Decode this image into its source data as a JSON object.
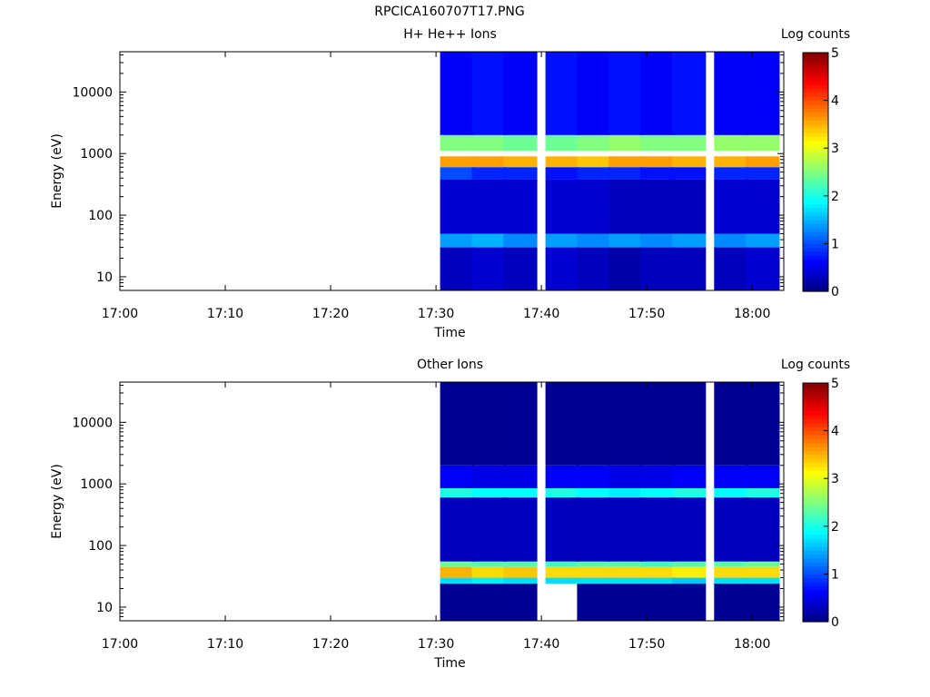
{
  "figure_title": "RPCICA160707T17.PNG",
  "colors": {
    "background": "#ffffff",
    "axis": "#000000"
  },
  "chart_data": [
    {
      "type": "heatmap",
      "title": "H+ He++ Ions",
      "xlabel": "Time",
      "ylabel": "Energy (eV)",
      "colorbar_label": "Log counts",
      "colorbar_ticks": [
        "0",
        "1",
        "2",
        "3",
        "4",
        "5"
      ],
      "colorbar_range": [
        0,
        5
      ],
      "colormap": "jet",
      "x_ticks": [
        "17:00",
        "17:10",
        "17:20",
        "17:30",
        "17:40",
        "17:50",
        "18:00"
      ],
      "x_range": [
        "17:00",
        "18:03"
      ],
      "y_scale": "log",
      "y_ticks": [
        "10",
        "100",
        "1000",
        "10000"
      ],
      "y_range": [
        6,
        45000
      ],
      "time_bins": [
        "17:32",
        "17:35",
        "17:38",
        "17:42",
        "17:45",
        "17:48",
        "17:51",
        "17:54",
        "17:58",
        "18:01"
      ],
      "energy_bands_eV": [
        {
          "range": [
            600,
            900
          ],
          "log_counts": [
            3.6,
            3.6,
            3.5,
            3.5,
            3.4,
            3.6,
            3.6,
            3.5,
            3.5,
            3.6
          ]
        },
        {
          "range": [
            1100,
            2000
          ],
          "log_counts": [
            2.5,
            2.5,
            2.4,
            2.4,
            2.5,
            2.6,
            2.5,
            2.5,
            2.6,
            2.6
          ]
        },
        {
          "range": [
            2000,
            45000
          ],
          "log_counts": [
            0.6,
            0.7,
            0.6,
            0.7,
            0.6,
            0.7,
            0.6,
            0.7,
            0.6,
            0.6
          ]
        },
        {
          "range": [
            380,
            600
          ],
          "log_counts": [
            1.0,
            0.8,
            0.8,
            0.7,
            0.8,
            0.8,
            0.7,
            0.7,
            0.8,
            0.8
          ]
        },
        {
          "range": [
            50,
            380
          ],
          "log_counts": [
            0.4,
            0.4,
            0.4,
            0.4,
            0.4,
            0.3,
            0.3,
            0.3,
            0.4,
            0.4
          ]
        },
        {
          "range": [
            30,
            50
          ],
          "log_counts": [
            1.4,
            1.5,
            1.3,
            1.4,
            1.3,
            1.4,
            1.3,
            1.4,
            1.3,
            1.4
          ]
        },
        {
          "range": [
            6,
            30
          ],
          "log_counts": [
            0.3,
            0.4,
            0.3,
            0.4,
            0.3,
            0.2,
            0.3,
            0.3,
            0.3,
            0.4
          ]
        }
      ]
    },
    {
      "type": "heatmap",
      "title": "Other Ions",
      "xlabel": "Time",
      "ylabel": "Energy (eV)",
      "colorbar_label": "Log counts",
      "colorbar_ticks": [
        "0",
        "1",
        "2",
        "3",
        "4",
        "5"
      ],
      "colorbar_range": [
        0,
        5
      ],
      "colormap": "jet",
      "x_ticks": [
        "17:00",
        "17:10",
        "17:20",
        "17:30",
        "17:40",
        "17:50",
        "18:00"
      ],
      "x_range": [
        "17:00",
        "18:03"
      ],
      "y_scale": "log",
      "y_ticks": [
        "10",
        "100",
        "1000",
        "10000"
      ],
      "y_range": [
        6,
        45000
      ],
      "time_bins": [
        "17:32",
        "17:35",
        "17:38",
        "17:42",
        "17:45",
        "17:48",
        "17:51",
        "17:54",
        "17:58",
        "18:01"
      ],
      "energy_bands_eV": [
        {
          "range": [
            30,
            45
          ],
          "log_counts": [
            3.5,
            3.3,
            3.4,
            3.3,
            3.3,
            3.3,
            3.3,
            3.2,
            3.3,
            3.3
          ]
        },
        {
          "range": [
            45,
            55
          ],
          "log_counts": [
            2.4,
            2.3,
            2.3,
            2.2,
            2.3,
            2.3,
            2.2,
            2.3,
            2.3,
            2.4
          ]
        },
        {
          "range": [
            24,
            30
          ],
          "log_counts": [
            1.7,
            1.8,
            1.7,
            1.7,
            1.7,
            1.7,
            1.7,
            1.6,
            1.7,
            1.7
          ]
        },
        {
          "range": [
            600,
            850
          ],
          "log_counts": [
            2.0,
            1.9,
            1.9,
            2.0,
            1.9,
            1.8,
            1.9,
            2.0,
            1.9,
            2.0
          ]
        },
        {
          "range": [
            850,
            2000
          ],
          "log_counts": [
            0.6,
            0.5,
            0.5,
            0.6,
            0.6,
            0.5,
            0.5,
            0.6,
            0.6,
            0.6
          ]
        },
        {
          "range": [
            55,
            600
          ],
          "log_counts": [
            0.3,
            0.3,
            0.3,
            0.3,
            0.3,
            0.3,
            0.3,
            0.3,
            0.3,
            0.3
          ]
        },
        {
          "range": [
            2000,
            45000
          ],
          "log_counts": [
            0.1,
            0.1,
            0.1,
            0.1,
            0.1,
            0.1,
            0.1,
            0.1,
            0.1,
            0.1
          ]
        },
        {
          "range": [
            6,
            24
          ],
          "log_counts": [
            0.1,
            0.1,
            0.1,
            0.0,
            0.1,
            0.1,
            0.1,
            0.1,
            0.1,
            0.1
          ]
        }
      ]
    }
  ]
}
